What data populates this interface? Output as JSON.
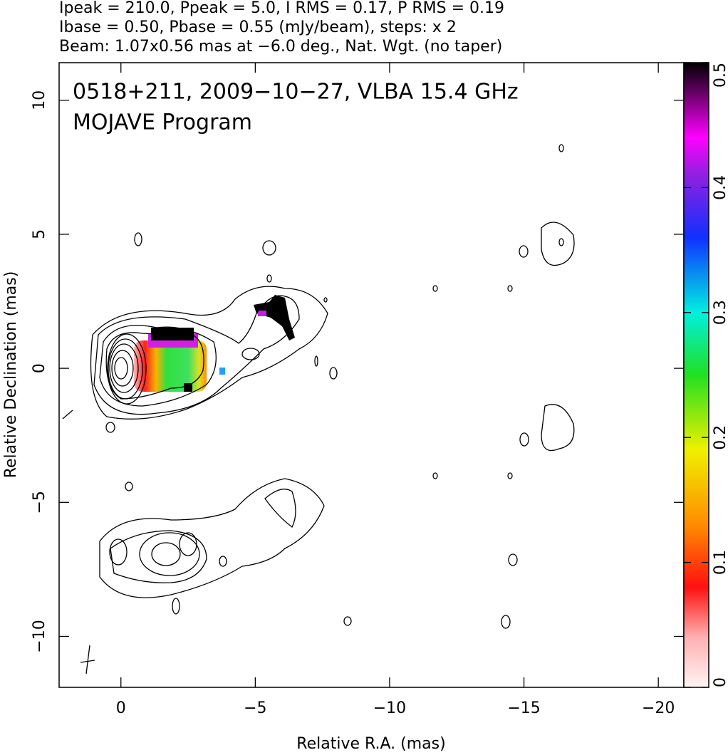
{
  "chart_data": {
    "type": "contour-map",
    "title_lines": [
      "Ipeak = 210.0, Ppeak = 5.0, I RMS = 0.17, P RMS = 0.19",
      "Ibase = 0.50, Pbase = 0.55 (mJy/beam), steps: x 2",
      "Beam: 1.07x0.56 mas at −6.0 deg., Nat. Wgt. (no taper)"
    ],
    "annotations": [
      "0518+211, 2009−10−27, VLBA 15.4 GHz",
      "MOJAVE Program"
    ],
    "x_label": "Relative R.A. (mas)",
    "y_label": "Relative Declination (mas)",
    "xlim": [
      2.3,
      -20.95
    ],
    "ylim": [
      -11.9,
      11.4
    ],
    "xticks": [
      0,
      {
        "value": -5,
        "label": "−5"
      },
      {
        "value": -10,
        "label": "−10"
      },
      {
        "value": -15,
        "label": "−15"
      },
      {
        "value": -20,
        "label": "−20"
      }
    ],
    "yticks": [
      {
        "value": -10,
        "label": "−10"
      },
      {
        "value": -5,
        "label": "−5"
      },
      0,
      5,
      10
    ],
    "colorbar": {
      "lim": [
        0,
        0.5
      ],
      "ticks": [
        0,
        0.1,
        0.2,
        0.3,
        0.4,
        0.5
      ]
    }
  }
}
